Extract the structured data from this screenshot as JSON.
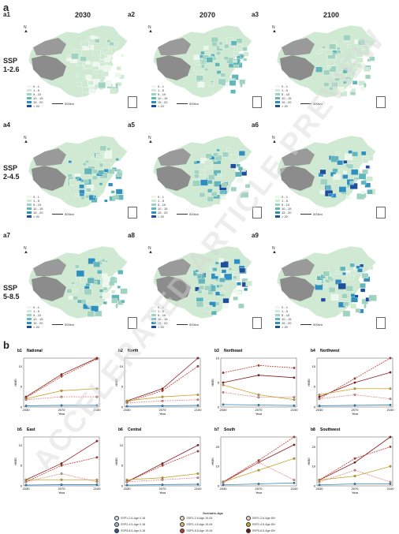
{
  "section_a": "a",
  "section_b": "b",
  "years": [
    "2030",
    "2070",
    "2100"
  ],
  "ssp_rows": [
    {
      "line1": "SSP",
      "line2": "1-2.6"
    },
    {
      "line1": "SSP",
      "line2": "2-4.5"
    },
    {
      "line1": "SSP",
      "line2": "5-8.5"
    }
  ],
  "map_panels": [
    "a1",
    "a2",
    "a3",
    "a4",
    "a5",
    "a6",
    "a7",
    "a8",
    "a9"
  ],
  "map_legend": {
    "items": [
      "0 - 1",
      "1 - 5",
      "5 - 10",
      "10 - 15",
      "15 - 20",
      "> 20"
    ],
    "colors": [
      "#eef7ee",
      "#cfe9d3",
      "#9fd3c0",
      "#63b6b8",
      "#2f8fbf",
      "#1f4f9a"
    ]
  },
  "scale_label": "500km",
  "north_label": "N",
  "watermark": "ACCELERATED ARTICLE PREVIEW",
  "charts": [
    {
      "id": "b1",
      "title": "National",
      "ymax": 10,
      "yticks": [
        0,
        5,
        10
      ]
    },
    {
      "id": "b2",
      "title": "North",
      "ymax": 10,
      "yticks": [
        0,
        5,
        10
      ]
    },
    {
      "id": "b3",
      "title": "Northeast",
      "ymax": 10,
      "yticks": [
        0,
        5,
        10
      ]
    },
    {
      "id": "b4",
      "title": "Northwest",
      "ymax": 10,
      "yticks": [
        0,
        5,
        10
      ]
    },
    {
      "id": "b5",
      "title": "East",
      "ymax": 10,
      "yticks": [
        0,
        5,
        10
      ]
    },
    {
      "id": "b6",
      "title": "Central",
      "ymax": 10,
      "yticks": [
        0,
        5,
        10
      ]
    },
    {
      "id": "b7",
      "title": "South",
      "ymax": 20,
      "yticks": [
        0,
        10,
        20
      ]
    },
    {
      "id": "b8",
      "title": "Southwest",
      "ymax": 20,
      "yticks": [
        0,
        10,
        20
      ]
    }
  ],
  "axis": {
    "xlabel": "Year",
    "ylabel": "HBEI",
    "xticks": [
      "2030",
      "2070",
      "2100"
    ]
  },
  "chart_data": {
    "type": "line",
    "x": [
      2030,
      2070,
      2100
    ],
    "xlabel": "Year",
    "ylabel": "HBEI",
    "charts": [
      {
        "title": "National",
        "ylim": [
          0,
          12
        ],
        "series": [
          {
            "name": "SSP5-8.5-Age 65+",
            "values": [
              2.5,
              8,
              12.3
            ],
            "color": "#8b1a1a"
          },
          {
            "name": "SSP5-8.5-Age 19-64",
            "values": [
              2.3,
              7.5,
              11.8
            ],
            "color": "#c0392b"
          },
          {
            "name": "SSP2-4.5-Age 65+",
            "values": [
              2,
              4,
              4.5
            ],
            "color": "#c9a227"
          },
          {
            "name": "SSP1-2.6-Age 65+",
            "values": [
              1.8,
              2.5,
              2.5
            ],
            "color": "#e08b8b"
          },
          {
            "name": "SSP1-2.6-Age 0-18",
            "values": [
              0.3,
              0.4,
              0.4
            ],
            "color": "#2b83ba"
          }
        ]
      },
      {
        "title": "North",
        "ylim": [
          0,
          12
        ],
        "series": [
          {
            "name": "SSP5-8.5-Age 65+",
            "values": [
              1.5,
              4.5,
              12
            ],
            "color": "#8b1a1a"
          },
          {
            "name": "SSP5-8.5-Age 19-64",
            "values": [
              1.2,
              4,
              10
            ],
            "color": "#c0392b"
          },
          {
            "name": "SSP2-4.5-Age 65+",
            "values": [
              1.5,
              2.5,
              3
            ],
            "color": "#c9a227"
          },
          {
            "name": "SSP1-2.6-Age 65+",
            "values": [
              1,
              1.5,
              1.8
            ],
            "color": "#e08b8b"
          },
          {
            "name": "SSP1-2.6-Age 0-18",
            "values": [
              0.2,
              0.3,
              0.4
            ],
            "color": "#2b83ba"
          }
        ]
      },
      {
        "title": "Northeast",
        "ylim": [
          0,
          10
        ],
        "series": [
          {
            "name": "SSP5-8.5-Age 65+",
            "values": [
              5,
              6.5,
              6
            ],
            "color": "#8b1a1a"
          },
          {
            "name": "SSP5-8.5-Age 19-64",
            "values": [
              7,
              8.5,
              8
            ],
            "color": "#c0392b"
          },
          {
            "name": "SSP2-4.5-Age 65+",
            "values": [
              4.5,
              2.5,
              1.5
            ],
            "color": "#c9a227"
          },
          {
            "name": "SSP1-2.6-Age 65+",
            "values": [
              3,
              2,
              2
            ],
            "color": "#e08b8b"
          },
          {
            "name": "SSP1-2.6-Age 0-18",
            "values": [
              0.5,
              0.4,
              0.3
            ],
            "color": "#2b83ba"
          }
        ]
      },
      {
        "title": "Northwest",
        "ylim": [
          0,
          12
        ],
        "series": [
          {
            "name": "SSP5-8.5-Age 65+",
            "values": [
              2.5,
              6,
              8.5
            ],
            "color": "#8b1a1a"
          },
          {
            "name": "SSP5-8.5-Age 19-64",
            "values": [
              2,
              7,
              12
            ],
            "color": "#c0392b"
          },
          {
            "name": "SSP2-4.5-Age 65+",
            "values": [
              3,
              4.5,
              4.5
            ],
            "color": "#c9a227"
          },
          {
            "name": "SSP1-2.6-Age 65+",
            "values": [
              2,
              3,
              2
            ],
            "color": "#e08b8b"
          },
          {
            "name": "SSP1-2.6-Age 0-18",
            "values": [
              0.3,
              0.4,
              0.5
            ],
            "color": "#2b83ba"
          }
        ]
      },
      {
        "title": "East",
        "ylim": [
          0,
          12
        ],
        "series": [
          {
            "name": "SSP5-8.5-Age 65+",
            "values": [
              1.5,
              5.5,
              11
            ],
            "color": "#8b1a1a"
          },
          {
            "name": "SSP5-8.5-Age 19-64",
            "values": [
              1,
              5,
              7
            ],
            "color": "#c0392b"
          },
          {
            "name": "SSP2-4.5-Age 65+",
            "values": [
              1.5,
              1.5,
              1.5
            ],
            "color": "#c9a227"
          },
          {
            "name": "SSP1-2.6-Age 65+",
            "values": [
              1,
              3,
              1
            ],
            "color": "#e08b8b"
          },
          {
            "name": "SSP1-2.6-Age 0-18",
            "values": [
              0.2,
              0.3,
              0.3
            ],
            "color": "#2b83ba"
          }
        ]
      },
      {
        "title": "Central",
        "ylim": [
          0,
          12
        ],
        "series": [
          {
            "name": "SSP5-8.5-Age 65+",
            "values": [
              1,
              5.5,
              10
            ],
            "color": "#8b1a1a"
          },
          {
            "name": "SSP5-8.5-Age 19-64",
            "values": [
              1,
              5,
              8.5
            ],
            "color": "#c0392b"
          },
          {
            "name": "SSP2-4.5-Age 65+",
            "values": [
              1.5,
              2,
              3
            ],
            "color": "#c9a227"
          },
          {
            "name": "SSP1-2.6-Age 65+",
            "values": [
              1,
              1.5,
              2
            ],
            "color": "#e08b8b"
          },
          {
            "name": "SSP1-2.6-Age 0-18",
            "values": [
              0.2,
              0.3,
              0.4
            ],
            "color": "#2b83ba"
          }
        ]
      },
      {
        "title": "South",
        "ylim": [
          0,
          25
        ],
        "series": [
          {
            "name": "SSP5-8.5-Age 65+",
            "values": [
              2,
              12,
              21
            ],
            "color": "#8b1a1a"
          },
          {
            "name": "SSP5-8.5-Age 19-64",
            "values": [
              2,
              13,
              26
            ],
            "color": "#c0392b"
          },
          {
            "name": "SSP2-4.5-Age 65+",
            "values": [
              2,
              8,
              14
            ],
            "color": "#c9a227"
          },
          {
            "name": "SSP1-2.6-Age 65+",
            "values": [
              1.5,
              12,
              3
            ],
            "color": "#e08b8b"
          },
          {
            "name": "SSP1-2.6-Age 0-18",
            "values": [
              0.5,
              1,
              1.5
            ],
            "color": "#2b83ba"
          }
        ]
      },
      {
        "title": "Southwest",
        "ylim": [
          0,
          25
        ],
        "series": [
          {
            "name": "SSP5-8.5-Age 65+",
            "values": [
              3,
              12,
              25
            ],
            "color": "#8b1a1a"
          },
          {
            "name": "SSP5-8.5-Age 19-64",
            "values": [
              3,
              14,
              20
            ],
            "color": "#c0392b"
          },
          {
            "name": "SSP2-4.5-Age 65+",
            "values": [
              3,
              5,
              10
            ],
            "color": "#c9a227"
          },
          {
            "name": "SSP1-2.6-Age 65+",
            "values": [
              2,
              8,
              2
            ],
            "color": "#e08b8b"
          },
          {
            "name": "SSP1-2.6-Age 0-18",
            "values": [
              0.5,
              1,
              1
            ],
            "color": "#2b83ba"
          }
        ]
      }
    ]
  },
  "scenario_legend": {
    "title": "Scenario-Age",
    "items": [
      {
        "label": "SSP1-2.6-Age 0-18",
        "color": "#cfd8e3"
      },
      {
        "label": "SSP2-4.5-Age 0-18",
        "color": "#9bb3cc"
      },
      {
        "label": "SSP5-8.5-Age 0-18",
        "color": "#2b5c8a"
      },
      {
        "label": "SSP1-2.6-Age 19-64",
        "color": "#e6d7c0"
      },
      {
        "label": "SSP2-4.5-Age 19-64",
        "color": "#d9b36a"
      },
      {
        "label": "SSP5-8.5-Age 19-64",
        "color": "#c0392b"
      },
      {
        "label": "SSP1-2.6-Age 65+",
        "color": "#f1c9c9"
      },
      {
        "label": "SSP2-4.5-Age 65+",
        "color": "#c9a227"
      },
      {
        "label": "SSP5-8.5-Age 65+",
        "color": "#6d1414"
      }
    ]
  }
}
